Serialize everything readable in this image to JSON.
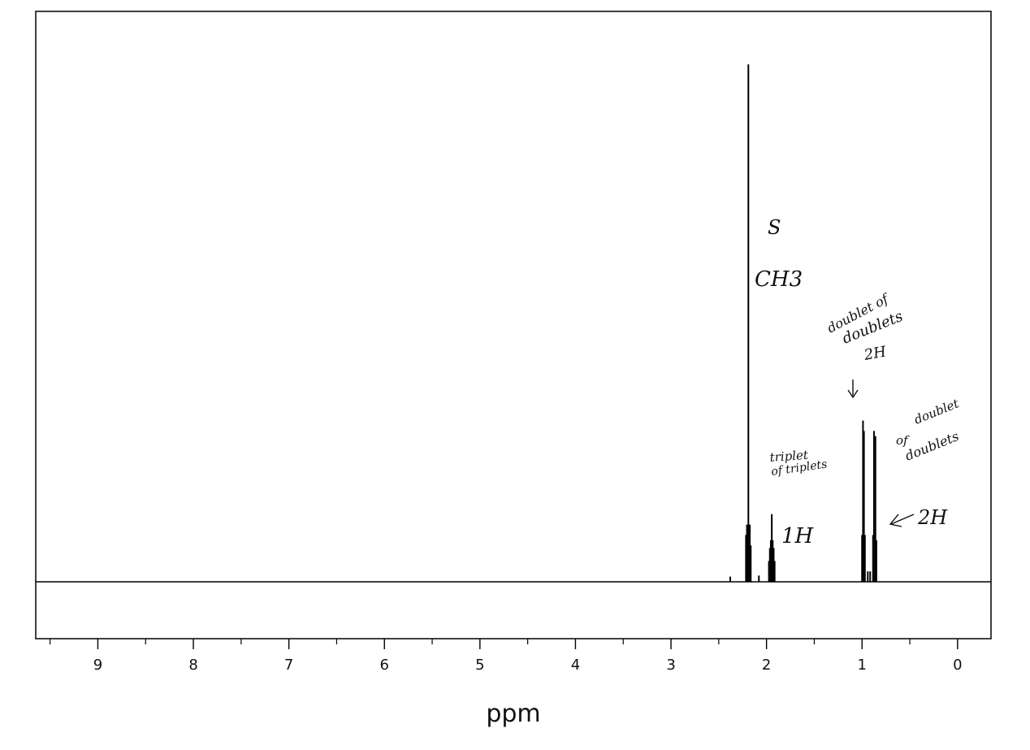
{
  "chart_data": {
    "type": "line",
    "title": "",
    "xlabel": "ppm",
    "ylabel": "",
    "xlim": [
      9.65,
      -0.35
    ],
    "x_reversed": true,
    "x_ticks": [
      9,
      8,
      7,
      6,
      5,
      4,
      3,
      2,
      1,
      0
    ],
    "x_tick_labels": [
      "9",
      "8",
      "7",
      "6",
      "5",
      "4",
      "3",
      "2",
      "1",
      "0"
    ],
    "x_minor_step": 0.5,
    "ylim": [
      -0.1,
      1.0
    ],
    "grid": false,
    "baseline": 0,
    "series": [
      {
        "peaks": [
          {
            "x": 2.38,
            "y": 0.01
          },
          {
            "x": 2.215,
            "y": 0.09
          },
          {
            "x": 2.205,
            "y": 0.11
          },
          {
            "x": 2.19,
            "y": 0.995
          },
          {
            "x": 2.175,
            "y": 0.11
          },
          {
            "x": 2.165,
            "y": 0.07
          },
          {
            "x": 2.08,
            "y": 0.012
          },
          {
            "x": 1.975,
            "y": 0.04
          },
          {
            "x": 1.965,
            "y": 0.065
          },
          {
            "x": 1.955,
            "y": 0.08
          },
          {
            "x": 1.945,
            "y": 0.13
          },
          {
            "x": 1.935,
            "y": 0.08
          },
          {
            "x": 1.925,
            "y": 0.065
          },
          {
            "x": 1.915,
            "y": 0.04
          },
          {
            "x": 1.0,
            "y": 0.09
          },
          {
            "x": 0.99,
            "y": 0.31
          },
          {
            "x": 0.98,
            "y": 0.29
          },
          {
            "x": 0.97,
            "y": 0.09
          },
          {
            "x": 0.94,
            "y": 0.02
          },
          {
            "x": 0.915,
            "y": 0.02
          },
          {
            "x": 0.885,
            "y": 0.09
          },
          {
            "x": 0.875,
            "y": 0.29
          },
          {
            "x": 0.86,
            "y": 0.28
          },
          {
            "x": 0.85,
            "y": 0.08
          }
        ]
      }
    ],
    "annotations": [
      {
        "text": "S",
        "x": 2.02,
        "y": 0.62
      },
      {
        "text": "CH3",
        "x": 1.94,
        "y": 0.55
      },
      {
        "text": "doublet of",
        "x": 1.02,
        "y": 0.46
      },
      {
        "text": "doublets",
        "x": 0.96,
        "y": 0.42
      },
      {
        "text": "2H",
        "x": 0.93,
        "y": 0.38
      },
      {
        "text": "triplet",
        "x": 1.82,
        "y": 0.193
      },
      {
        "text": "of triplets",
        "x": 1.72,
        "y": 0.17
      },
      {
        "text": "1H",
        "x": 1.78,
        "y": 0.095
      },
      {
        "text": "doublet",
        "x": 0.62,
        "y": 0.29
      },
      {
        "text": "of",
        "x": 0.78,
        "y": 0.23
      },
      {
        "text": "doublets",
        "x": 0.63,
        "y": 0.215
      },
      {
        "text": "2H",
        "x": 0.62,
        "y": 0.13
      }
    ]
  }
}
